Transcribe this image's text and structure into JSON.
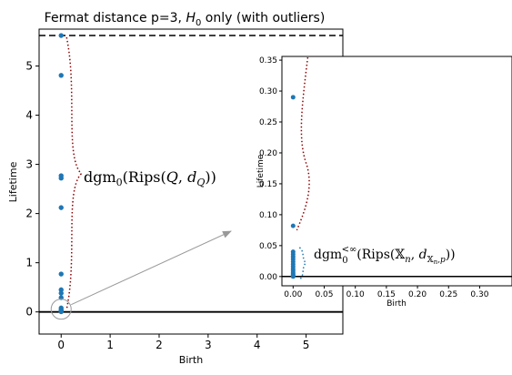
{
  "chart_data": [
    {
      "type": "scatter",
      "title": "Fermat distance p=3, $H_0$ only (with outliers)",
      "title_parts": [
        "Fermat distance p=3, ",
        "H",
        "0",
        " only (with outliers)"
      ],
      "xlabel": "Birth",
      "ylabel": "Lifetime",
      "xlim": [
        -0.45,
        5.75
      ],
      "ylim": [
        -0.45,
        5.75
      ],
      "xticks": [
        0,
        1,
        2,
        3,
        4,
        5
      ],
      "yticks": [
        0,
        1,
        2,
        3,
        4,
        5
      ],
      "grid": false,
      "points": {
        "x": [
          0,
          0,
          0,
          0,
          0,
          0,
          0,
          0,
          0,
          0,
          0,
          0,
          0,
          0,
          0,
          0
        ],
        "y": [
          5.62,
          4.81,
          2.77,
          2.72,
          2.12,
          0.77,
          0.45,
          0.38,
          0.29,
          0.08,
          0.04,
          0.03,
          0.02,
          0.015,
          0.01,
          0.005
        ],
        "color": "#1f77b4"
      },
      "reference_lines": [
        {
          "y": 5.62,
          "style": "dashed",
          "color": "#000000"
        },
        {
          "y": 0,
          "style": "solid",
          "color": "#000000"
        }
      ],
      "annotation": "$\\mathrm{dgm}_0(\\mathrm{Rips}(Q, d_Q))$",
      "annotation_parts": [
        "dgm",
        "0",
        "(Rips(",
        "Q",
        ", ",
        "d",
        "Q",
        "))"
      ],
      "brace_color": "#8b0000"
    },
    {
      "type": "scatter",
      "title": "",
      "xlabel": "Birth",
      "ylabel": "Lifetime",
      "xlim": [
        -0.018,
        0.352
      ],
      "ylim": [
        -0.015,
        0.356
      ],
      "xticks": [
        0.0,
        0.05,
        0.1,
        0.15,
        0.2,
        0.25,
        0.3
      ],
      "xticklabels": [
        "0.00",
        "0.05",
        "0.10",
        "0.15",
        "0.20",
        "0.25",
        "0.30"
      ],
      "yticks": [
        0.0,
        0.05,
        0.1,
        0.15,
        0.2,
        0.25,
        0.3,
        0.35
      ],
      "yticklabels": [
        "0.00",
        "0.05",
        "0.10",
        "0.15",
        "0.20",
        "0.25",
        "0.30",
        "0.35"
      ],
      "grid": false,
      "points": {
        "x": [
          0,
          0,
          0,
          0,
          0,
          0,
          0,
          0,
          0,
          0,
          0,
          0,
          0,
          0,
          0
        ],
        "y": [
          0.29,
          0.082,
          0.04,
          0.036,
          0.032,
          0.028,
          0.024,
          0.02,
          0.016,
          0.012,
          0.009,
          0.006,
          0.004,
          0.002,
          0.0
        ],
        "color": "#1f77b4"
      },
      "reference_lines": [
        {
          "y": 0,
          "style": "solid",
          "color": "#000000"
        }
      ],
      "annotation": "$\\mathrm{dgm}_0^{<\\infty}(\\mathrm{Rips}(\\mathbb{X}_n, d_{\\mathbb{X}_n,p}))$",
      "annotation_parts": [
        "dgm",
        "0",
        "<∞",
        "(Rips(",
        "𝕏",
        "n",
        ", ",
        "d",
        "𝕏",
        "n",
        ",p",
        "))"
      ],
      "brace_colors": [
        "#8b0000",
        "#1f77b4"
      ]
    }
  ],
  "colors": {
    "points": "#1f77b4",
    "outlier_brace": "#8b0000",
    "cluster_brace": "#1f77b4",
    "axes": "#000000",
    "connector": "#999999"
  }
}
